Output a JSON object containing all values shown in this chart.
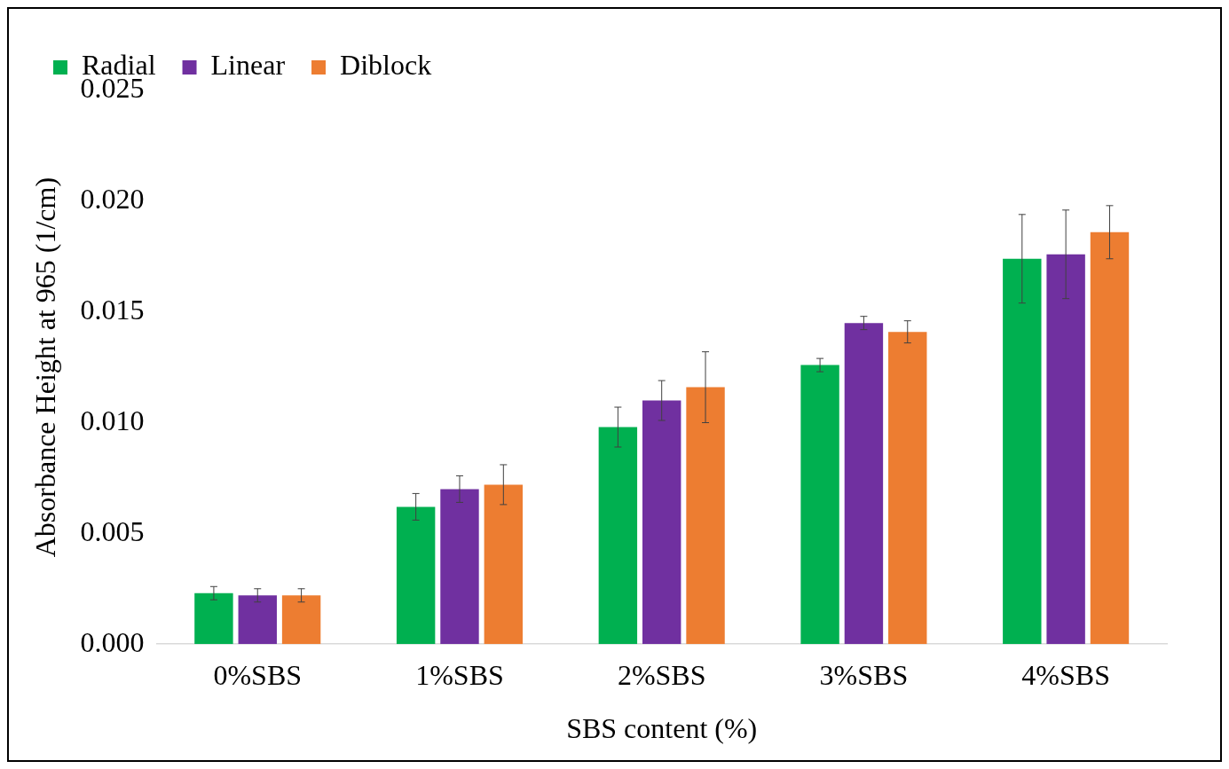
{
  "chart_data": {
    "type": "bar",
    "xlabel": "SBS content (%)",
    "ylabel": "Absorbance Height at 965 (1/cm)",
    "categories": [
      "0%SBS",
      "1%SBS",
      "2%SBS",
      "3%SBS",
      "4%SBS"
    ],
    "series": [
      {
        "name": "Radial",
        "color": "#00b050",
        "values": [
          0.0023,
          0.0062,
          0.0098,
          0.0126,
          0.0174
        ],
        "errors": [
          0.0003,
          0.0006,
          0.0009,
          0.0003,
          0.002
        ]
      },
      {
        "name": "Linear",
        "color": "#7030a0",
        "values": [
          0.0022,
          0.007,
          0.011,
          0.0145,
          0.0176
        ],
        "errors": [
          0.0003,
          0.0006,
          0.0009,
          0.0003,
          0.002
        ]
      },
      {
        "name": "Diblock",
        "color": "#ed7d31",
        "values": [
          0.0022,
          0.0072,
          0.0116,
          0.0141,
          0.0186
        ],
        "errors": [
          0.0003,
          0.0009,
          0.0016,
          0.0005,
          0.0012
        ]
      }
    ],
    "ylim": [
      0,
      0.025
    ],
    "yticks": [
      {
        "value": 0,
        "label": "0.000"
      },
      {
        "value": 0.005,
        "label": "0.005"
      },
      {
        "value": 0.01,
        "label": "0.010"
      },
      {
        "value": 0.015,
        "label": "0.015"
      },
      {
        "value": 0.02,
        "label": "0.020"
      },
      {
        "value": 0.025,
        "label": "0.025"
      }
    ],
    "grid": false,
    "legend": "top left"
  }
}
